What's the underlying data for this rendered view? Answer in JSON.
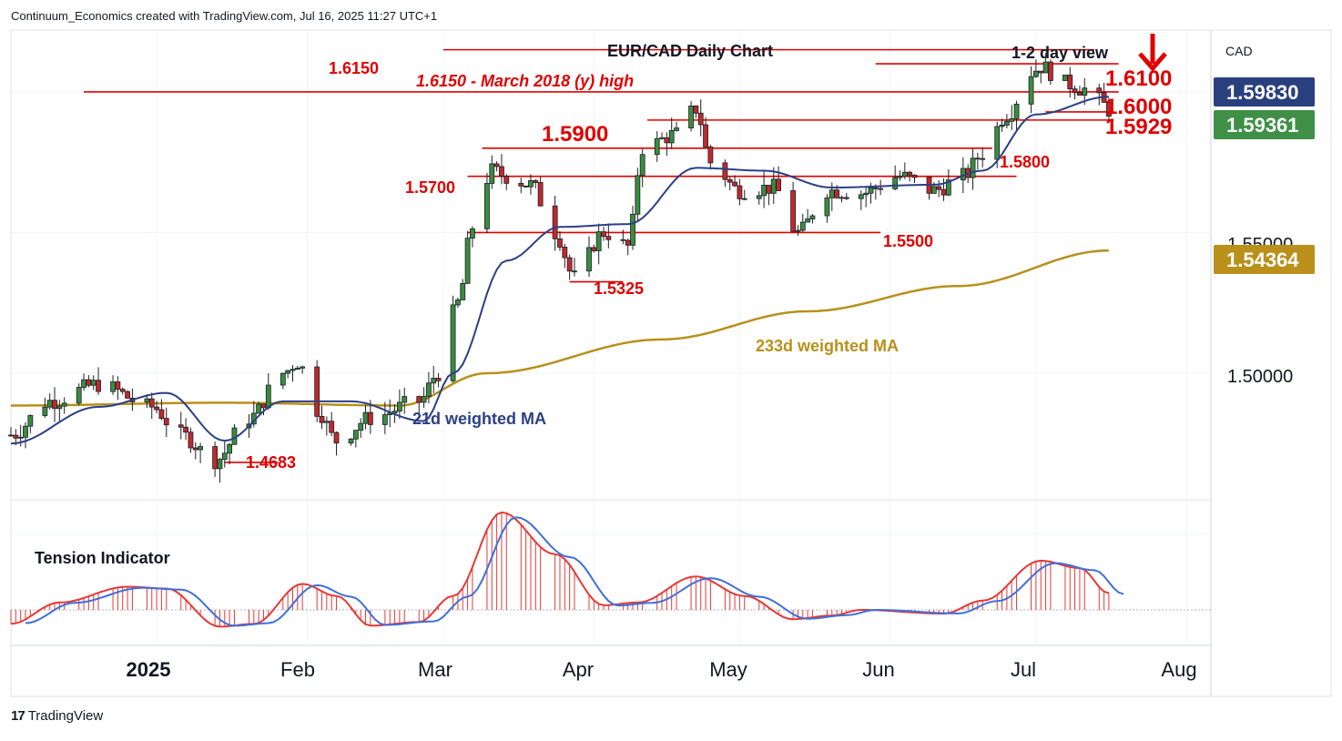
{
  "header": {
    "attribution": "Continuum_Economics created with TradingView.com, Jul 16, 2025 11:27 UTC+1"
  },
  "footer": {
    "logo_text": "TradingView",
    "logo_mark": "17"
  },
  "price_axis": {
    "currency": "CAD",
    "ticks": [
      "1.55000",
      "1.50000"
    ],
    "badges": {
      "last": {
        "text": "1.59830",
        "color": "#2a3f7e"
      },
      "current": {
        "text": "1.59361",
        "color": "#3f8f46"
      },
      "ma233": {
        "text": "1.54364",
        "color": "#b8901a"
      }
    }
  },
  "time_axis": {
    "labels": [
      "2025",
      "Feb",
      "Mar",
      "Apr",
      "May",
      "Jun",
      "Jul",
      "Aug"
    ]
  },
  "annotations": {
    "title": "EUR/CAD Daily Chart",
    "view": "1-2 day view",
    "view_direction": "down-arrow-icon",
    "level_6150_left": "1.6150",
    "level_6150_note": "1.6150 - March 2018 (y) high",
    "level_6100": "1.6100",
    "level_6000": "1.6000",
    "level_5929": "1.5929",
    "level_5900": "1.5900",
    "level_5800": "1.5800",
    "level_5700": "1.5700",
    "level_5500": "1.5500",
    "level_5325": "1.5325",
    "level_4683": "1.4683",
    "ma233_label": "233d weighted MA",
    "ma21_label": "21d weighted MA",
    "tension_label": "Tension Indicator"
  },
  "colors": {
    "up": "#3a8c3f",
    "down": "#c0282d",
    "level_line": "#e00000",
    "ma21": "#2b3f86",
    "ma233": "#b8901a",
    "tension_red": "#e53935",
    "tension_blue": "#3f6fd9"
  },
  "chart_data": {
    "type": "candlestick",
    "title": "EUR/CAD Daily Chart",
    "y_range": [
      1.455,
      1.622
    ],
    "x_range": [
      "2024-12-02",
      "2025-08-06"
    ],
    "levels": [
      1.615,
      1.61,
      1.6,
      1.5929,
      1.59,
      1.58,
      1.57,
      1.55,
      1.5325,
      1.4683
    ],
    "anchors": [
      {
        "date": "2024-12-02",
        "close": 1.478
      },
      {
        "date": "2024-12-10",
        "close": 1.49
      },
      {
        "date": "2024-12-20",
        "close": 1.496
      },
      {
        "date": "2024-12-31",
        "close": 1.488
      },
      {
        "date": "2025-01-06",
        "close": 1.478
      },
      {
        "date": "2025-01-13",
        "close": 1.469
      },
      {
        "date": "2025-01-20",
        "close": 1.484
      },
      {
        "date": "2025-01-27",
        "close": 1.5
      },
      {
        "date": "2025-01-30",
        "close": 1.504
      },
      {
        "date": "2025-02-03",
        "close": 1.487
      },
      {
        "date": "2025-02-07",
        "close": 1.476
      },
      {
        "date": "2025-02-14",
        "close": 1.484
      },
      {
        "date": "2025-02-24",
        "close": 1.49
      },
      {
        "date": "2025-02-28",
        "close": 1.5
      },
      {
        "date": "2025-03-04",
        "close": 1.525
      },
      {
        "date": "2025-03-07",
        "close": 1.552
      },
      {
        "date": "2025-03-11",
        "close": 1.572
      },
      {
        "date": "2025-03-14",
        "close": 1.57
      },
      {
        "date": "2025-03-19",
        "close": 1.567
      },
      {
        "date": "2025-03-24",
        "close": 1.55
      },
      {
        "date": "2025-03-28",
        "close": 1.534
      },
      {
        "date": "2025-04-03",
        "close": 1.55
      },
      {
        "date": "2025-04-08",
        "close": 1.545
      },
      {
        "date": "2025-04-11",
        "close": 1.58
      },
      {
        "date": "2025-04-18",
        "close": 1.585
      },
      {
        "date": "2025-04-22",
        "close": 1.594
      },
      {
        "date": "2025-04-25",
        "close": 1.575
      },
      {
        "date": "2025-05-01",
        "close": 1.565
      },
      {
        "date": "2025-05-08",
        "close": 1.566
      },
      {
        "date": "2025-05-13",
        "close": 1.55
      },
      {
        "date": "2025-05-19",
        "close": 1.565
      },
      {
        "date": "2025-05-26",
        "close": 1.564
      },
      {
        "date": "2025-06-03",
        "close": 1.57
      },
      {
        "date": "2025-06-10",
        "close": 1.565
      },
      {
        "date": "2025-06-16",
        "close": 1.57
      },
      {
        "date": "2025-06-20",
        "close": 1.578
      },
      {
        "date": "2025-06-25",
        "close": 1.592
      },
      {
        "date": "2025-06-30",
        "close": 1.607
      },
      {
        "date": "2025-07-02",
        "close": 1.609
      },
      {
        "date": "2025-07-07",
        "close": 1.603
      },
      {
        "date": "2025-07-11",
        "close": 1.601
      },
      {
        "date": "2025-07-14",
        "close": 1.597
      },
      {
        "date": "2025-07-16",
        "close": 1.5936
      }
    ],
    "ma21_anchors": [
      {
        "date": "2024-12-02",
        "value": 1.475
      },
      {
        "date": "2024-12-20",
        "value": 1.488
      },
      {
        "date": "2025-01-03",
        "value": 1.493
      },
      {
        "date": "2025-01-15",
        "value": 1.476
      },
      {
        "date": "2025-01-27",
        "value": 1.49
      },
      {
        "date": "2025-02-10",
        "value": 1.49
      },
      {
        "date": "2025-02-25",
        "value": 1.483
      },
      {
        "date": "2025-03-03",
        "value": 1.5
      },
      {
        "date": "2025-03-14",
        "value": 1.54
      },
      {
        "date": "2025-03-25",
        "value": 1.552
      },
      {
        "date": "2025-04-08",
        "value": 1.553
      },
      {
        "date": "2025-04-22",
        "value": 1.573
      },
      {
        "date": "2025-05-06",
        "value": 1.572
      },
      {
        "date": "2025-05-20",
        "value": 1.566
      },
      {
        "date": "2025-06-10",
        "value": 1.567
      },
      {
        "date": "2025-06-20",
        "value": 1.572
      },
      {
        "date": "2025-07-01",
        "value": 1.592
      },
      {
        "date": "2025-07-16",
        "value": 1.5983
      }
    ],
    "ma233_anchors": [
      {
        "date": "2024-12-02",
        "value": 1.4885
      },
      {
        "date": "2025-01-15",
        "value": 1.4895
      },
      {
        "date": "2025-02-20",
        "value": 1.4885
      },
      {
        "date": "2025-03-10",
        "value": 1.5
      },
      {
        "date": "2025-04-15",
        "value": 1.512
      },
      {
        "date": "2025-05-15",
        "value": 1.522
      },
      {
        "date": "2025-06-15",
        "value": 1.531
      },
      {
        "date": "2025-07-16",
        "value": 1.5436
      }
    ],
    "tension_anchors": [
      {
        "date": "2024-12-02",
        "value": -1.5
      },
      {
        "date": "2024-12-12",
        "value": 0.8
      },
      {
        "date": "2024-12-26",
        "value": 2.5
      },
      {
        "date": "2025-01-03",
        "value": 2.3
      },
      {
        "date": "2025-01-14",
        "value": -1.8
      },
      {
        "date": "2025-01-21",
        "value": -1.5
      },
      {
        "date": "2025-01-31",
        "value": 2.8
      },
      {
        "date": "2025-02-07",
        "value": 1.5
      },
      {
        "date": "2025-02-14",
        "value": -1.7
      },
      {
        "date": "2025-02-24",
        "value": -1.3
      },
      {
        "date": "2025-03-03",
        "value": 1.5
      },
      {
        "date": "2025-03-13",
        "value": 10.5
      },
      {
        "date": "2025-03-24",
        "value": 6.0
      },
      {
        "date": "2025-04-03",
        "value": 0.5
      },
      {
        "date": "2025-04-10",
        "value": 0.8
      },
      {
        "date": "2025-04-22",
        "value": 3.6
      },
      {
        "date": "2025-05-02",
        "value": 1.5
      },
      {
        "date": "2025-05-12",
        "value": -1.0
      },
      {
        "date": "2025-05-20",
        "value": -0.6
      },
      {
        "date": "2025-05-26",
        "value": 0.0
      },
      {
        "date": "2025-06-12",
        "value": -0.4
      },
      {
        "date": "2025-06-20",
        "value": 1.0
      },
      {
        "date": "2025-07-02",
        "value": 5.3
      },
      {
        "date": "2025-07-10",
        "value": 4.5
      },
      {
        "date": "2025-07-16",
        "value": 1.8
      }
    ]
  }
}
